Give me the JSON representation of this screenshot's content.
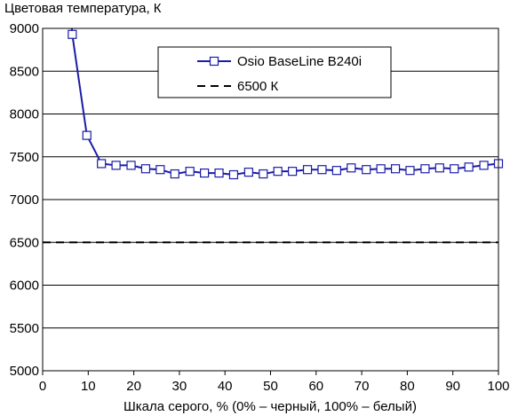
{
  "chart_data": {
    "type": "line",
    "title": "",
    "ylabel": "Цветовая температура, К",
    "xlabel": "Шкала серого, % (0% – черный, 100% – белый)",
    "xlim": [
      0,
      100
    ],
    "ylim": [
      5000,
      9000
    ],
    "xticks": [
      0,
      10,
      20,
      30,
      40,
      50,
      60,
      70,
      80,
      90,
      100
    ],
    "yticks": [
      5000,
      5500,
      6000,
      6500,
      7000,
      7500,
      8000,
      8500,
      9000
    ],
    "grid": "horizontal",
    "legend_position": "top-right",
    "series": [
      {
        "name": "Osio BaseLine B240i",
        "color": "#1c1ca8",
        "marker": "square",
        "x": [
          6.5,
          9.7,
          12.9,
          16.1,
          19.4,
          22.6,
          25.8,
          29.0,
          32.3,
          35.5,
          38.7,
          41.9,
          45.2,
          48.4,
          51.6,
          54.8,
          58.1,
          61.3,
          64.5,
          67.7,
          71.0,
          74.2,
          77.4,
          80.6,
          83.9,
          87.1,
          90.3,
          93.5,
          96.8,
          100
        ],
        "y": [
          8930,
          7750,
          7420,
          7400,
          7400,
          7360,
          7350,
          7300,
          7330,
          7310,
          7310,
          7290,
          7320,
          7300,
          7330,
          7330,
          7350,
          7350,
          7340,
          7370,
          7350,
          7360,
          7360,
          7340,
          7360,
          7370,
          7360,
          7380,
          7400,
          7420
        ]
      },
      {
        "name": "6500 К",
        "color": "#000000",
        "style": "dashed",
        "x": [
          0,
          100
        ],
        "y": [
          6500,
          6500
        ]
      }
    ]
  }
}
